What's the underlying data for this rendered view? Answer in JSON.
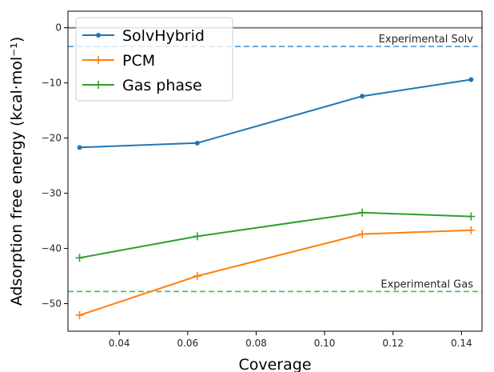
{
  "chart_data": {
    "type": "line",
    "title": "",
    "xlabel": "Coverage",
    "ylabel": "Adsorption free energy (kcal·mol⁻¹)",
    "xlim": [
      0.025,
      0.146
    ],
    "ylim": [
      -55,
      3
    ],
    "xticks": [
      0.04,
      0.06,
      0.08,
      0.1,
      0.12,
      0.14
    ],
    "xtick_labels": [
      "0.04",
      "0.06",
      "0.08",
      "0.10",
      "0.12",
      "0.14"
    ],
    "yticks": [
      0,
      -10,
      -20,
      -30,
      -40,
      -50
    ],
    "ytick_labels": [
      "0",
      "−10",
      "−20",
      "−30",
      "−40",
      "−50"
    ],
    "grid": false,
    "legend_position": "top-left",
    "x": [
      0.0284,
      0.0628,
      0.111,
      0.1428
    ],
    "series": [
      {
        "name": "SolvHybrid",
        "values": [
          -21.7,
          -20.9,
          -12.4,
          -9.4
        ],
        "color": "#1f77b4",
        "marker": "dot"
      },
      {
        "name": "PCM",
        "values": [
          -52.1,
          -45.0,
          -37.4,
          -36.7
        ],
        "color": "#ff7f0e",
        "marker": "plus"
      },
      {
        "name": "Gas phase",
        "values": [
          -41.7,
          -37.8,
          -33.5,
          -34.2
        ],
        "color": "#2ca02c",
        "marker": "plus"
      }
    ],
    "reference_lines": [
      {
        "label": "",
        "y": 0,
        "color": "#808080",
        "style": "solid"
      },
      {
        "label": "Experimental Solv",
        "y": -3.4,
        "color": "#5a9fd4",
        "style": "dashed"
      },
      {
        "label": "Experimental Gas",
        "y": -47.8,
        "color": "#5cb85c",
        "style": "dashed"
      }
    ]
  }
}
